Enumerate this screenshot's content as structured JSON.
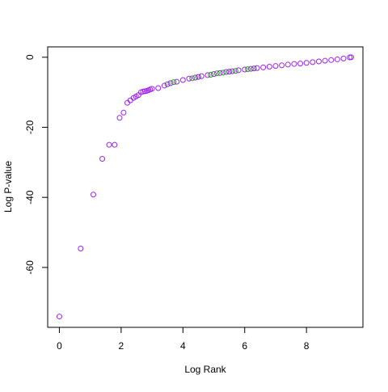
{
  "chart_data": {
    "type": "scatter",
    "xlabel": "Log Rank",
    "ylabel": "Log P-value",
    "xlim": [
      -0.378,
      9.828
    ],
    "ylim": [
      -77.1,
      2.96
    ],
    "xticks": [
      0,
      2,
      4,
      6,
      8
    ],
    "yticks": [
      0,
      -20,
      -40,
      -60
    ],
    "series": [
      {
        "color": "#a020f0",
        "x": [
          0,
          0.69,
          1.1,
          1.39,
          1.61,
          1.79,
          1.95,
          2.08,
          2.2,
          2.3,
          2.4,
          2.48,
          2.56,
          2.64,
          2.71,
          2.77,
          2.83,
          2.89,
          2.94,
          3.0,
          3.2,
          3.4,
          3.6,
          3.8,
          4.0,
          4.2,
          4.4,
          4.6,
          4.8,
          5.0,
          5.2,
          5.4,
          5.6,
          5.8,
          6.0,
          6.2,
          6.4,
          6.6,
          6.8,
          7.0,
          7.2,
          7.4,
          7.6,
          7.8,
          8.0,
          8.2,
          8.4,
          8.6,
          8.8,
          9.0,
          9.2,
          9.4,
          9.45
        ],
        "values": [
          -74,
          -54.6,
          -39.2,
          -29,
          -25,
          -25,
          -17.3,
          -15.8,
          -13,
          -12.3,
          -11.6,
          -11.2,
          -10.8,
          -10,
          -9.8,
          -9.7,
          -9.6,
          -9.4,
          -9.2,
          -9.0,
          -8.8,
          -8.1,
          -7.4,
          -7.0,
          -6.5,
          -6.1,
          -5.8,
          -5.4,
          -5.1,
          -4.8,
          -4.5,
          -4.2,
          -4.0,
          -3.7,
          -3.5,
          -3.3,
          -3.1,
          -2.9,
          -2.7,
          -2.5,
          -2.3,
          -2.1,
          -1.9,
          -1.8,
          -1.6,
          -1.4,
          -1.2,
          -1.0,
          -0.8,
          -0.6,
          -0.35,
          -0.05,
          0
        ]
      },
      {
        "color": "#22a022",
        "x": [
          3.7,
          4.3,
          4.9,
          5.1,
          5.3,
          5.7,
          6.1
        ],
        "values": [
          -7.1,
          -6.0,
          -5.0,
          -4.6,
          -4.4,
          -3.9,
          -3.4
        ]
      },
      {
        "color": "#505080",
        "x": [
          3.5,
          4.5,
          5.5,
          6.3
        ],
        "values": [
          -7.7,
          -5.6,
          -4.1,
          -3.2
        ]
      }
    ]
  }
}
